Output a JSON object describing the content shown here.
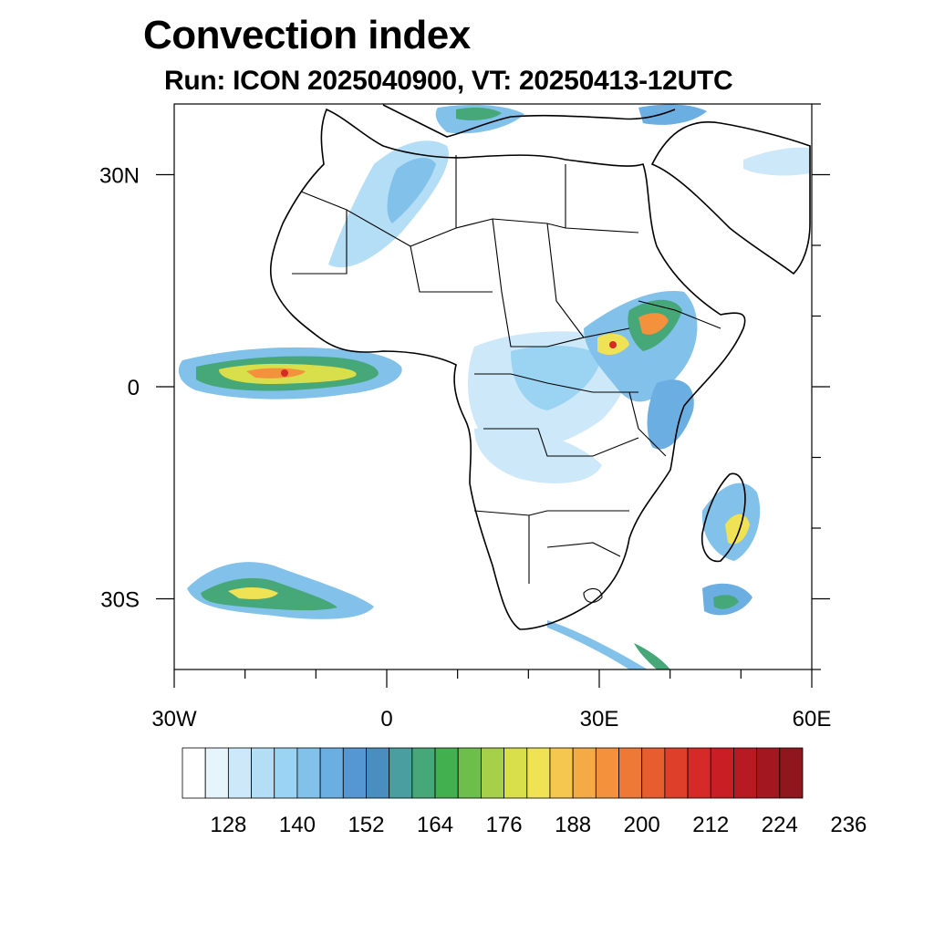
{
  "title": "Convection index",
  "subtitle": "Run: ICON 2025040900,  VT: 20250413-12UTC",
  "axes": {
    "lon_ticks": [
      {
        "value": -30,
        "label": "30W"
      },
      {
        "value": 0,
        "label": "0"
      },
      {
        "value": 30,
        "label": "30E"
      },
      {
        "value": 60,
        "label": "60E"
      }
    ],
    "lat_ticks": [
      {
        "value": 30,
        "label": "30N"
      },
      {
        "value": 0,
        "label": "0"
      },
      {
        "value": -30,
        "label": "30S"
      }
    ],
    "lon_range": [
      -30,
      60
    ],
    "lat_range": [
      -40,
      40
    ]
  },
  "colorbar": {
    "labels": [
      "128",
      "140",
      "152",
      "164",
      "176",
      "188",
      "200",
      "212",
      "224",
      "236"
    ],
    "colors": [
      "#ffffff",
      "#e6f4fc",
      "#cde8f8",
      "#b4def6",
      "#9bd3f2",
      "#82c1ea",
      "#6aaee2",
      "#5597d2",
      "#4a8ec0",
      "#4a9ea0",
      "#46a878",
      "#43b050",
      "#6dbe4a",
      "#a6cf4a",
      "#d8df4a",
      "#efe355",
      "#f6c74e",
      "#f4aa45",
      "#f3913d",
      "#ee7836",
      "#e85d30",
      "#de3f2b",
      "#d62a28",
      "#c81e24",
      "#b71a22",
      "#a31820",
      "#8f161d"
    ]
  }
}
